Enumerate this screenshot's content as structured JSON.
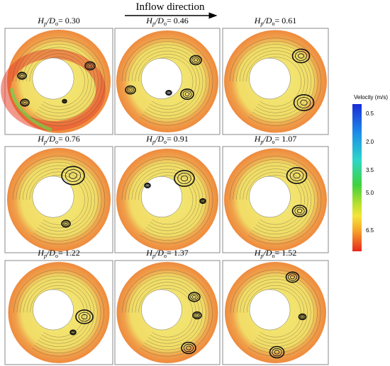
{
  "header": {
    "title": "Inflow direction"
  },
  "label_symbol": {
    "h": "H",
    "h_sub": "p",
    "d": "/D",
    "d_sub": "o",
    "eq": "="
  },
  "panels": [
    {
      "value": "0.30"
    },
    {
      "value": "0.46"
    },
    {
      "value": "0.61"
    },
    {
      "value": "0.76"
    },
    {
      "value": "0.91"
    },
    {
      "value": "1.07"
    },
    {
      "value": "1.22"
    },
    {
      "value": "1.37"
    },
    {
      "value": "1.52"
    }
  ],
  "colorbar": {
    "title": "Velocity (m/s)",
    "ticks": [
      "0.5",
      "2.0",
      "3.5",
      "5.0",
      "6.5"
    ]
  }
}
